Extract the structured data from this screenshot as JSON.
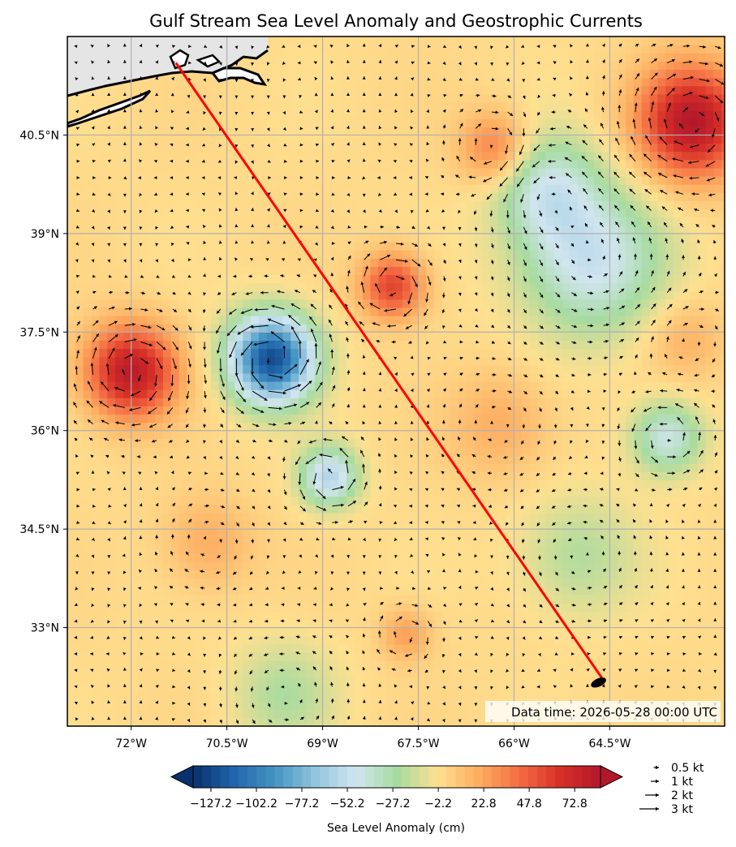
{
  "chart_data": {
    "type": "heatmap",
    "title": "Gulf Stream Sea Level Anomaly and Geostrophic Currents",
    "annotation": "Data time: 2026-05-28 00:00 UTC",
    "x_ticks": [
      "72°W",
      "70.5°W",
      "69°W",
      "67.5°W",
      "66°W",
      "64.5°W"
    ],
    "x_tick_values": [
      -72,
      -70.5,
      -69,
      -67.5,
      -66,
      -64.5
    ],
    "y_ticks": [
      "40.5°N",
      "39°N",
      "37.5°N",
      "36°N",
      "34.5°N",
      "33°N"
    ],
    "y_tick_values": [
      40.5,
      39,
      37.5,
      36,
      34.5,
      33
    ],
    "xlim": [
      -73,
      -62.7
    ],
    "ylim": [
      31.5,
      42
    ],
    "grid": true,
    "colorbar": {
      "label": "Sea Level Anomaly (cm)",
      "ticks": [
        "−127.2",
        "−102.2",
        "−77.2",
        "−52.2",
        "−27.2",
        "−2.2",
        "22.8",
        "47.8",
        "72.8"
      ],
      "tick_values": [
        -127.2,
        -102.2,
        -77.2,
        -52.2,
        -27.2,
        -2.2,
        22.8,
        47.8,
        72.8
      ],
      "range": [
        -137,
        87
      ],
      "colormap": [
        "#08306b",
        "#2166ac",
        "#4393c3",
        "#92c5de",
        "#d1e5f0",
        "#a6dba0",
        "#fee090",
        "#fdae61",
        "#f46d43",
        "#d73027",
        "#b2182b"
      ],
      "extend": "both"
    },
    "quiver_key": [
      {
        "label": "0.5 kt",
        "speed": 0.5
      },
      {
        "label": "1 kt",
        "speed": 1
      },
      {
        "label": "2 kt",
        "speed": 2
      },
      {
        "label": "3 kt",
        "speed": 3
      }
    ],
    "transect": {
      "color": "#ff0000",
      "start": [
        -71.3,
        41.6
      ],
      "end": [
        -64.6,
        32.2
      ]
    },
    "anomalies": [
      {
        "lon": -69.8,
        "lat": 37.1,
        "value": -125,
        "r": 0.65
      },
      {
        "lon": -68.9,
        "lat": 35.3,
        "value": -58,
        "r": 0.45
      },
      {
        "lon": -64.8,
        "lat": 38.6,
        "value": -50,
        "r": 1.1
      },
      {
        "lon": -63.6,
        "lat": 35.9,
        "value": -45,
        "r": 0.55
      },
      {
        "lon": -65.5,
        "lat": 39.7,
        "value": -40,
        "r": 0.8
      },
      {
        "lon": -65.0,
        "lat": 34.1,
        "value": -22,
        "r": 0.9
      },
      {
        "lon": -69.6,
        "lat": 32.0,
        "value": -22,
        "r": 0.8
      },
      {
        "lon": -72.0,
        "lat": 36.9,
        "value": 82,
        "r": 0.7
      },
      {
        "lon": -67.9,
        "lat": 38.2,
        "value": 58,
        "r": 0.5
      },
      {
        "lon": -63.2,
        "lat": 40.7,
        "value": 85,
        "r": 0.85
      },
      {
        "lon": -66.3,
        "lat": 40.3,
        "value": 38,
        "r": 0.55
      },
      {
        "lon": -70.8,
        "lat": 34.3,
        "value": 20,
        "r": 0.7
      },
      {
        "lon": -67.7,
        "lat": 32.9,
        "value": 25,
        "r": 0.4
      },
      {
        "lon": -66.2,
        "lat": 36.1,
        "value": 20,
        "r": 0.8
      },
      {
        "lon": -63.3,
        "lat": 37.4,
        "value": 18,
        "r": 0.6
      }
    ]
  }
}
